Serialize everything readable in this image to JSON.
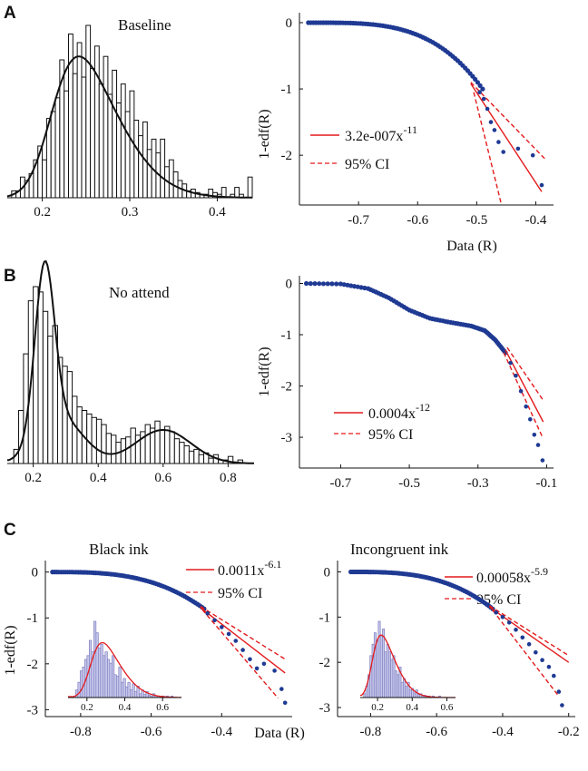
{
  "panels": {
    "A": {
      "letter": "A",
      "hist_title": "Baseline",
      "ccdf_ylabel": "1-edf(R)",
      "ccdf_xlabel": "Data (R)",
      "legend_coef": "3.2e-007x",
      "legend_exp": "-11",
      "legend_ci": "95% CI"
    },
    "B": {
      "letter": "B",
      "hist_title": "No attend",
      "ccdf_ylabel": "1-edf(R)",
      "legend_coef": "0.0004x",
      "legend_exp": "-12",
      "legend_ci": "95% CI"
    },
    "C": {
      "letter": "C",
      "ccdf_ylabel": "1-edf(R)",
      "ccdf_xlabel": "Data (R)",
      "left_title": "Black ink",
      "left_legend_coef": "0.0011x",
      "left_legend_exp": "-6.1",
      "left_legend_ci": "95% CI",
      "right_title": "Incongruent ink",
      "right_legend_coef": "0.00058x",
      "right_legend_exp": "-5.9",
      "right_legend_ci": "95% CI"
    }
  },
  "colors": {
    "data_points": "#1f3a93",
    "fit_line": "#e31a1c",
    "ci_line": "#e31a1c",
    "bars": "#ffffff",
    "bar_edge": "#111111",
    "inset_bars": "#c8c8ec",
    "inset_edge": "#7f7fbf",
    "inset_curve": "#e31a1c"
  },
  "chart_data": [
    {
      "id": "A-hist",
      "type": "bar",
      "title": "Baseline",
      "xlim": [
        0.16,
        0.44
      ],
      "ylim": [
        0,
        1
      ],
      "xticks": [
        "0.2",
        "0.3",
        "0.4"
      ],
      "xtick_values": [
        0.2,
        0.3,
        0.4
      ],
      "bin_start": 0.165,
      "bin_width": 0.005,
      "values": [
        0.04,
        0.04,
        0.12,
        0.1,
        0.14,
        0.22,
        0.3,
        0.22,
        0.46,
        0.5,
        0.58,
        0.8,
        0.62,
        0.95,
        0.72,
        0.9,
        0.7,
        1.0,
        0.75,
        0.88,
        0.66,
        0.82,
        0.6,
        0.74,
        0.55,
        0.66,
        0.5,
        0.62,
        0.45,
        0.36,
        0.44,
        0.28,
        0.34,
        0.26,
        0.34,
        0.18,
        0.22,
        0.15,
        0.1,
        0.08,
        0.04,
        0.05,
        0.03,
        0.02,
        0.02,
        0.05,
        0.03,
        0.02,
        0.06,
        0.0,
        0.02,
        0.06,
        0.02,
        0.0,
        0.12,
        0.0
      ],
      "curve": {
        "mode": "skewnormal",
        "loc": 0.212,
        "scale": 0.06,
        "alpha": 2.6,
        "peak": 0.82
      }
    },
    {
      "id": "A-ccdf",
      "type": "scatter",
      "ylabel": "1-edf(R)",
      "xlabel": "Data (R)",
      "xlim": [
        -0.8,
        -0.37
      ],
      "ylim": [
        -2.75,
        0.15
      ],
      "xticks": [
        "-0.7",
        "-0.6",
        "-0.5",
        "-0.4"
      ],
      "xtick_values": [
        -0.7,
        -0.6,
        -0.5,
        -0.4
      ],
      "yticks": [
        "0",
        "-1",
        "-2"
      ],
      "ytick_values": [
        0,
        -1,
        -2
      ],
      "curve": {
        "x0": -0.785,
        "x1": -0.49,
        "y0": 0.0,
        "y1": -1.0,
        "p": 3.6
      },
      "tail_points": [
        [
          -0.495,
          -1.05
        ],
        [
          -0.488,
          -1.15
        ],
        [
          -0.482,
          -1.3
        ],
        [
          -0.476,
          -1.5
        ],
        [
          -0.47,
          -1.62
        ],
        [
          -0.463,
          -1.8
        ],
        [
          -0.455,
          -1.95
        ],
        [
          -0.43,
          -1.9
        ],
        [
          -0.405,
          -2.0
        ],
        [
          -0.39,
          -2.45
        ]
      ],
      "fit": [
        [
          -0.51,
          -0.92
        ],
        [
          -0.39,
          -2.55
        ]
      ],
      "ci_upper": [
        [
          -0.51,
          -0.9
        ],
        [
          -0.385,
          -2.05
        ]
      ],
      "ci_lower": [
        [
          -0.505,
          -1.05
        ],
        [
          -0.458,
          -2.75
        ]
      ]
    },
    {
      "id": "B-hist",
      "type": "bar",
      "title": "No attend",
      "xlim": [
        0.12,
        0.88
      ],
      "ylim": [
        0,
        1
      ],
      "xticks": [
        "0.2",
        "0.4",
        "0.6",
        "0.8"
      ],
      "xtick_values": [
        0.2,
        0.4,
        0.6,
        0.8
      ],
      "bin_start": 0.14,
      "bin_width": 0.015,
      "values": [
        0.08,
        0.3,
        0.62,
        0.92,
        1.0,
        0.97,
        0.86,
        0.72,
        0.78,
        0.6,
        0.55,
        0.52,
        0.38,
        0.32,
        0.3,
        0.28,
        0.26,
        0.25,
        0.22,
        0.17,
        0.16,
        0.12,
        0.14,
        0.15,
        0.2,
        0.16,
        0.18,
        0.22,
        0.2,
        0.24,
        0.19,
        0.21,
        0.18,
        0.14,
        0.12,
        0.1,
        0.07,
        0.08,
        0.05,
        0.06,
        0.03,
        0.05,
        0.02,
        0.02,
        0.04,
        0.0,
        0.02
      ],
      "curve": {
        "mode": "mixture",
        "m1": 0.235,
        "s1": 0.03,
        "a1": 0.95,
        "m2": 0.285,
        "s2": 0.07,
        "a2": 0.25,
        "m3": 0.6,
        "s3": 0.085,
        "a3": 0.19
      }
    },
    {
      "id": "B-ccdf",
      "type": "scatter",
      "ylabel": "1-edf(R)",
      "xlim": [
        -0.82,
        -0.08
      ],
      "ylim": [
        -3.6,
        0.15
      ],
      "xticks": [
        "-0.7",
        "-0.5",
        "-0.3",
        "-0.1"
      ],
      "xtick_values": [
        -0.7,
        -0.5,
        -0.3,
        -0.1
      ],
      "yticks": [
        "0",
        "-1",
        "-2",
        "-3"
      ],
      "ytick_values": [
        0,
        -1,
        -2,
        -3
      ],
      "curve_points": [
        [
          -0.8,
          0.0
        ],
        [
          -0.7,
          -0.01
        ],
        [
          -0.62,
          -0.1
        ],
        [
          -0.56,
          -0.28
        ],
        [
          -0.5,
          -0.52
        ],
        [
          -0.44,
          -0.68
        ],
        [
          -0.38,
          -0.76
        ],
        [
          -0.32,
          -0.83
        ],
        [
          -0.28,
          -0.92
        ],
        [
          -0.25,
          -1.1
        ],
        [
          -0.22,
          -1.35
        ]
      ],
      "tail_points": [
        [
          -0.205,
          -1.55
        ],
        [
          -0.19,
          -1.8
        ],
        [
          -0.175,
          -2.1
        ],
        [
          -0.16,
          -2.4
        ],
        [
          -0.148,
          -2.65
        ],
        [
          -0.136,
          -2.95
        ],
        [
          -0.125,
          -3.15
        ],
        [
          -0.112,
          -3.45
        ]
      ],
      "fit": [
        [
          -0.22,
          -1.3
        ],
        [
          -0.11,
          -2.7
        ]
      ],
      "ci_upper": [
        [
          -0.215,
          -1.25
        ],
        [
          -0.108,
          -2.3
        ]
      ],
      "ci_lower": [
        [
          -0.225,
          -1.35
        ],
        [
          -0.112,
          -3.0
        ]
      ]
    },
    {
      "id": "C-left",
      "type": "scatter",
      "title": "Black ink",
      "ylabel": "1-edf(R)",
      "xlabel": "Data (R)",
      "xlim": [
        -0.9,
        -0.2
      ],
      "ylim": [
        -3.15,
        0.25
      ],
      "xticks": [
        "-0.8",
        "-0.6",
        "-0.4"
      ],
      "xtick_values": [
        -0.8,
        -0.6,
        -0.4
      ],
      "yticks": [
        "0",
        "-1",
        "-2",
        "-3"
      ],
      "ytick_values": [
        0,
        -1,
        -2,
        -3
      ],
      "curve": {
        "x0": -0.88,
        "x1": -0.45,
        "y0": 0.0,
        "y1": -0.8,
        "p": 3.0
      },
      "tail_points": [
        [
          -0.44,
          -0.9
        ],
        [
          -0.42,
          -1.05
        ],
        [
          -0.4,
          -1.2
        ],
        [
          -0.38,
          -1.35
        ],
        [
          -0.36,
          -1.5
        ],
        [
          -0.34,
          -1.7
        ],
        [
          -0.32,
          -1.9
        ],
        [
          -0.3,
          -2.1
        ],
        [
          -0.28,
          -2.0
        ],
        [
          -0.25,
          -2.15
        ],
        [
          -0.23,
          -2.55
        ],
        [
          -0.22,
          -2.85
        ]
      ],
      "fit": [
        [
          -0.46,
          -0.78
        ],
        [
          -0.22,
          -2.2
        ]
      ],
      "ci_upper": [
        [
          -0.46,
          -0.75
        ],
        [
          -0.22,
          -1.9
        ]
      ],
      "ci_lower": [
        [
          -0.455,
          -0.82
        ],
        [
          -0.24,
          -2.75
        ]
      ],
      "inset": {
        "type": "bar",
        "xticks": [
          "0.2",
          "0.4",
          "0.6"
        ],
        "xtick_values": [
          0.2,
          0.4,
          0.6
        ],
        "xlim": [
          0.1,
          0.7
        ],
        "bin_start": 0.14,
        "bin_width": 0.012,
        "values": [
          0.1,
          0.2,
          0.35,
          0.4,
          0.5,
          0.55,
          0.75,
          0.6,
          1.0,
          0.85,
          0.65,
          0.7,
          0.55,
          0.6,
          0.5,
          0.45,
          0.55,
          0.3,
          0.28,
          0.4,
          0.2,
          0.25,
          0.14,
          0.2,
          0.1,
          0.18,
          0.08,
          0.15,
          0.05,
          0.1,
          0.04,
          0.08,
          0.03,
          0.02,
          0.05,
          0.02,
          0.02,
          0.0,
          0.02,
          0.0,
          0.02,
          0.0,
          0.02,
          0.0
        ],
        "curve": {
          "mode": "skewnormal",
          "loc": 0.22,
          "scale": 0.13,
          "alpha": 3.0,
          "peak": 0.72
        }
      }
    },
    {
      "id": "C-right",
      "type": "scatter",
      "title": "Incongruent ink",
      "xlim": [
        -0.9,
        -0.18
      ],
      "ylim": [
        -3.2,
        0.25
      ],
      "xticks": [
        "-0.8",
        "-0.6",
        "-0.4",
        "-0.2"
      ],
      "xtick_values": [
        -0.8,
        -0.6,
        -0.4,
        -0.2
      ],
      "yticks": [
        "0",
        "-1",
        "-2",
        "-3"
      ],
      "ytick_values": [
        0,
        -1,
        -2,
        -3
      ],
      "curve": {
        "x0": -0.86,
        "x1": -0.43,
        "y0": 0.0,
        "y1": -0.82,
        "p": 3.0
      },
      "tail_points": [
        [
          -0.42,
          -0.9
        ],
        [
          -0.4,
          -1.0
        ],
        [
          -0.38,
          -1.12
        ],
        [
          -0.36,
          -1.28
        ],
        [
          -0.34,
          -1.45
        ],
        [
          -0.32,
          -1.6
        ],
        [
          -0.3,
          -1.78
        ],
        [
          -0.28,
          -1.95
        ],
        [
          -0.26,
          -2.1
        ],
        [
          -0.245,
          -2.3
        ],
        [
          -0.23,
          -2.65
        ],
        [
          -0.22,
          -2.95
        ]
      ],
      "fit": [
        [
          -0.44,
          -0.78
        ],
        [
          -0.2,
          -2.0
        ]
      ],
      "ci_upper": [
        [
          -0.44,
          -0.75
        ],
        [
          -0.2,
          -1.85
        ]
      ],
      "ci_lower": [
        [
          -0.43,
          -0.85
        ],
        [
          -0.23,
          -2.75
        ]
      ],
      "inset": {
        "type": "bar",
        "xticks": [
          "0.2",
          "0.4",
          "0.6"
        ],
        "xtick_values": [
          0.2,
          0.4,
          0.6
        ],
        "xlim": [
          0.1,
          0.65
        ],
        "bin_start": 0.12,
        "bin_width": 0.012,
        "values": [
          0.05,
          0.15,
          0.3,
          0.55,
          0.7,
          0.85,
          0.75,
          1.0,
          0.8,
          0.9,
          0.6,
          0.7,
          0.6,
          0.5,
          0.55,
          0.35,
          0.3,
          0.4,
          0.2,
          0.25,
          0.15,
          0.2,
          0.1,
          0.12,
          0.06,
          0.1,
          0.04,
          0.05,
          0.02,
          0.03,
          0.02,
          0.02,
          0.0,
          0.02,
          0.0,
          0.0,
          0.02
        ],
        "curve": {
          "mode": "skewnormal",
          "loc": 0.17,
          "scale": 0.11,
          "alpha": 3.2,
          "peak": 0.82
        }
      }
    }
  ]
}
